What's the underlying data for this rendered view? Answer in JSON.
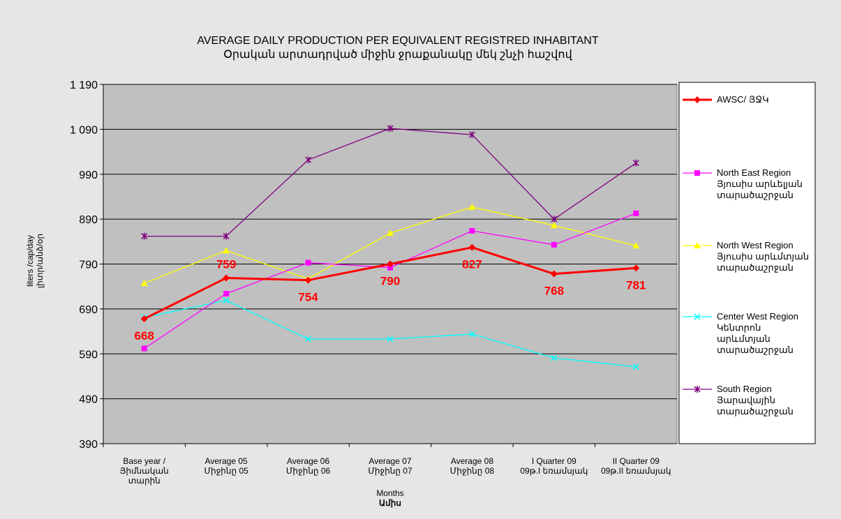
{
  "chart_data": {
    "type": "line",
    "title": "AVERAGE DAILY PRODUCTION PER EQUIVALENT REGISTRED INHABITANT",
    "subtitle": "Օրական արտադրված միջին ջրաքանակը մեկ  շնչի հաշվով",
    "x_label": "Months",
    "x_label_2": "Ամիս",
    "y_label": "liters /cap/day\nլիտր/անձ/օր",
    "categories": [
      "Base year /\nՅիմնական\nտարին",
      "Average 05\nՄիջինը 05",
      "Average 06\nՄիջինը 06",
      "Average 07\nՄիջինը 07",
      "Average 08\nՄիջինը 08",
      "I Quarter 09\n09թ.I եռամսյակ",
      "II Quarter 09\n09թ.II եռամսյակ"
    ],
    "ylim": [
      390,
      1190
    ],
    "yticks": [
      390,
      490,
      590,
      690,
      790,
      890,
      990,
      {
        "value": 1090,
        "label": "1 090"
      },
      {
        "value": 1190,
        "label": "1 190"
      }
    ],
    "grid": true,
    "series": [
      {
        "name": "AWSC/ ՅՋԿ",
        "color": "#ff0000",
        "marker": "diamond",
        "show_values": true,
        "values": [
          668,
          759,
          754,
          790,
          827,
          768,
          781
        ]
      },
      {
        "name": "North East Region\nՅյուսիս արևելյան\nտարածաշրջան",
        "color": "#ff00ff",
        "marker": "square",
        "values": [
          602,
          724,
          793,
          782,
          864,
          833,
          903
        ]
      },
      {
        "name": "North West Region\nՅյուսիս արևմտյան\nտարածաշրջան",
        "color": "#ffff00",
        "marker": "triangle",
        "values": [
          747,
          820,
          757,
          859,
          917,
          876,
          831
        ]
      },
      {
        "name": "Center West Region\nԿենտրոն\nարևմտյան\nտարածաշրջան",
        "color": "#00ffff",
        "marker": "x",
        "values": [
          671,
          709,
          623,
          623,
          634,
          581,
          561
        ]
      },
      {
        "name": "South Region\nՅարավային\nտարածաշրջան",
        "color": "#800080",
        "marker": "star",
        "values": [
          852,
          852,
          1022,
          1092,
          1078,
          890,
          1015
        ]
      }
    ]
  }
}
